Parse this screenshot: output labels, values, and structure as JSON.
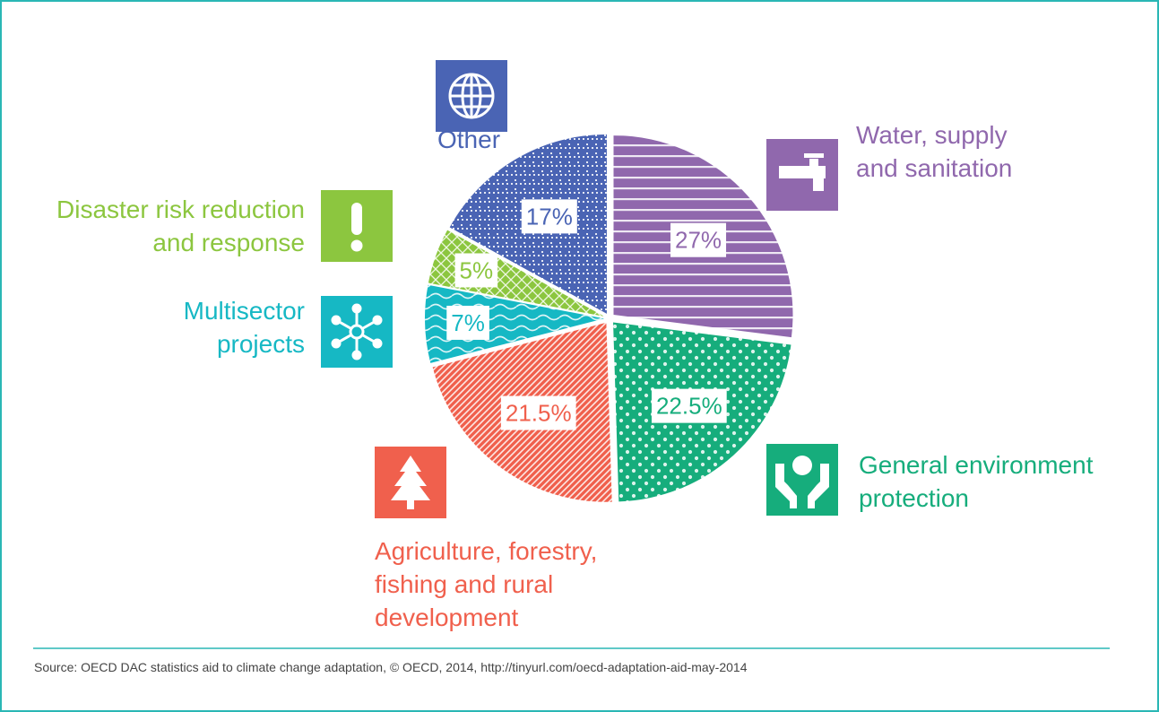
{
  "chart_data": {
    "type": "pie",
    "categories": [
      "Water, supply and sanitation",
      "General environment protection",
      "Agriculture, forestry, fishing and rural development",
      "Multisector projects",
      "Disaster risk reduction and response",
      "Other"
    ],
    "values": [
      27,
      22.5,
      21.5,
      7,
      5,
      17
    ],
    "value_labels": [
      "27%",
      "22.5%",
      "21.5%",
      "7%",
      "5%",
      "17%"
    ],
    "colors": [
      "#9068ad",
      "#16ad7c",
      "#f0604d",
      "#16b8c4",
      "#8cc63f",
      "#4a64b4"
    ],
    "source": "Source: OECD DAC statistics aid to climate change adaptation, © OECD, 2014, http://tinyurl.com/oecd-adaptation-aid-may-2014"
  }
}
